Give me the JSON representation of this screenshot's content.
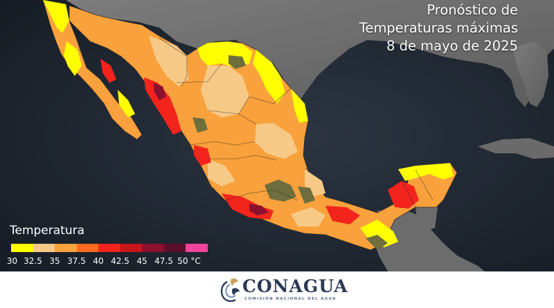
{
  "title": {
    "line1": "Pronóstico de",
    "line2": "Temperaturas máximas",
    "line3": "8 de mayo de 2025"
  },
  "legend": {
    "title": "Temperatura",
    "colors": [
      "#ffff00",
      "#f7c987",
      "#f9a13c",
      "#ff6b1f",
      "#f3241c",
      "#c8151c",
      "#8c1030",
      "#5c0f2c",
      "#f0449c"
    ],
    "labels": [
      "30",
      "32.5",
      "35",
      "37.5",
      "40",
      "42.5",
      "45",
      "47.5",
      "50 °C"
    ]
  },
  "footer": {
    "brand": "CONAGUA",
    "subtitle": "COMISIÓN NACIONAL DEL AGUA"
  },
  "colors": {
    "ocean": "#1e2630",
    "land_gray": "#6e6e6e",
    "brand_navy": "#2b3a55",
    "brand_gold": "#c9a15a"
  }
}
